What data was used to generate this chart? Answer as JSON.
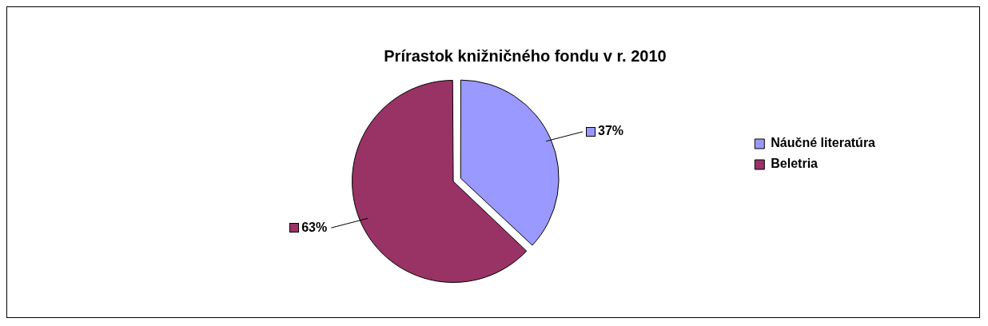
{
  "chart_data": {
    "type": "pie",
    "title": "Prírastok knižničného fondu v r. 2010",
    "categories": [
      "Náučné literatúra",
      "Beletria"
    ],
    "values": [
      37,
      63
    ],
    "colors": [
      "#9999ff",
      "#993366"
    ],
    "value_labels": [
      "37%",
      "63%"
    ],
    "legend": "right"
  }
}
